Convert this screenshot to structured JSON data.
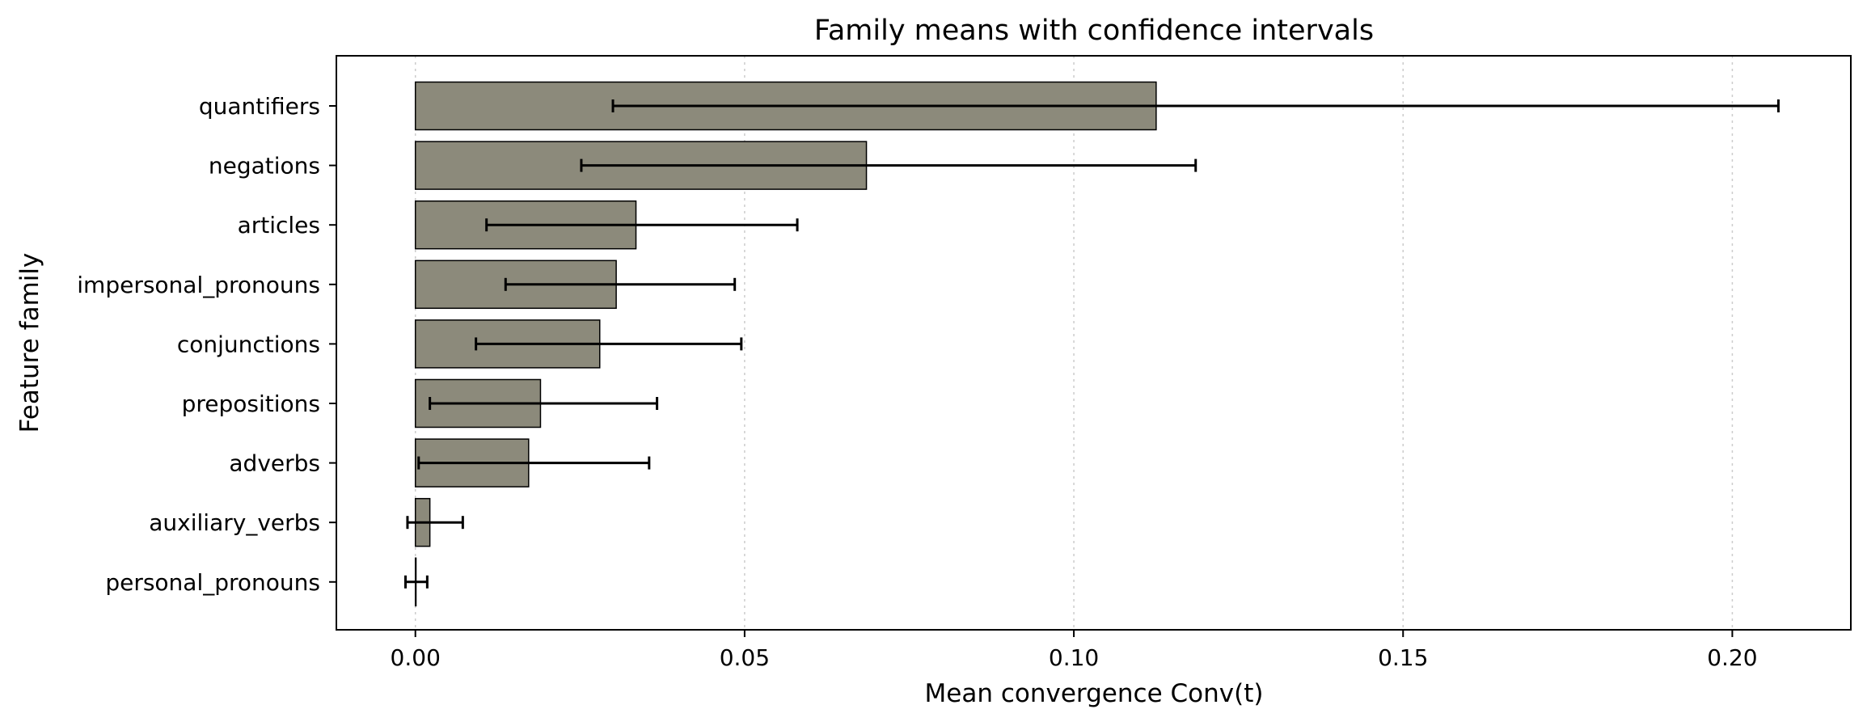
{
  "chart_data": {
    "type": "bar",
    "orientation": "horizontal",
    "title": "Family means with confidence intervals",
    "xlabel": "Mean convergence  Conv(t)",
    "ylabel": "Feature family",
    "categories": [
      "quantifiers",
      "negations",
      "articles",
      "impersonal_pronouns",
      "conjunctions",
      "prepositions",
      "adverbs",
      "auxiliary_verbs",
      "personal_pronouns"
    ],
    "values": [
      0.1125,
      0.0685,
      0.0335,
      0.0305,
      0.028,
      0.019,
      0.0172,
      0.0022,
      0.0
    ],
    "ci_low": [
      0.03,
      0.0252,
      0.0108,
      0.0137,
      0.0092,
      0.0022,
      0.0005,
      -0.0012,
      -0.0015
    ],
    "ci_high": [
      0.207,
      0.1185,
      0.058,
      0.0485,
      0.0495,
      0.0367,
      0.0355,
      0.0072,
      0.0018
    ],
    "xlim": [
      -0.012,
      0.218
    ],
    "xticks": [
      0.0,
      0.05,
      0.1,
      0.15,
      0.2
    ],
    "xtick_labels": [
      "0.00",
      "0.05",
      "0.10",
      "0.15",
      "0.20"
    ],
    "grid": "x-axis, dotted",
    "bar_color": "#8c8a7b",
    "edge_color": "#000000"
  }
}
